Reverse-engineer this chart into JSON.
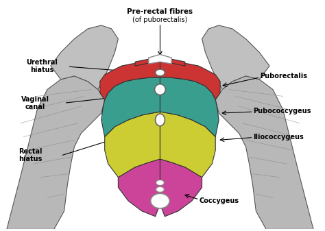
{
  "title": "",
  "background_color": "#ffffff",
  "labels": {
    "pre_rectal_fibres_line1": "Pre-rectal fibres",
    "pre_rectal_fibres_line2": "(of puborectalis)",
    "urethral_hiatus_line1": "Urethral",
    "urethral_hiatus_line2": "hiatus",
    "vaginal_canal_line1": "Vaginal",
    "vaginal_canal_line2": "canal",
    "rectal_hiatus_line1": "Rectal",
    "rectal_hiatus_line2": "hiatus",
    "puborectalis": "Puborectalis",
    "pubococcygeus": "Pubococcygeus",
    "iliococcygeus": "Iliococcygeus",
    "coccygeus": "Coccygeus"
  },
  "colors": {
    "background": "#ffffff",
    "muscle_gray": "#b8b8b8",
    "muscle_gray_dark": "#888888",
    "puborectalis": "#cc3333",
    "teal_muscle": "#3a9e8e",
    "yellow_muscle": "#cccc33",
    "pink_muscle": "#cc4499",
    "outline": "#333333",
    "label_text": "#000000"
  }
}
